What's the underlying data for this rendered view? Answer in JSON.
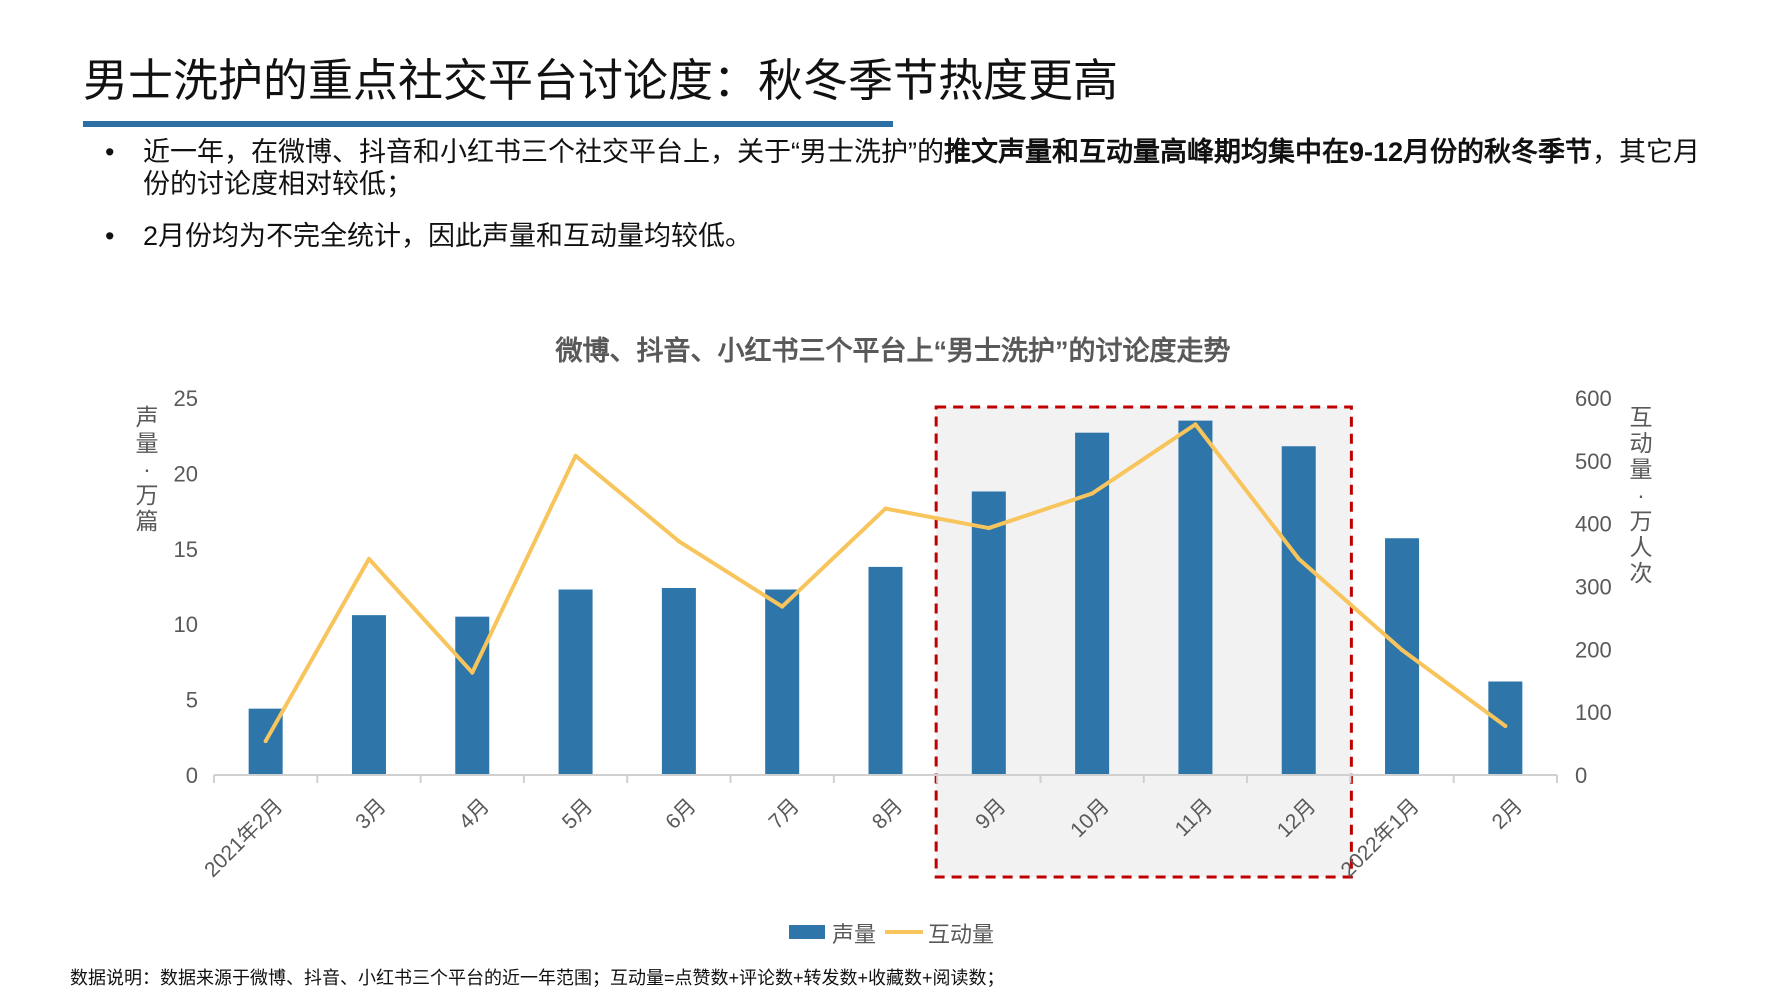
{
  "header": {
    "title": "男士洗护的重点社交平台讨论度：秋冬季节热度更高",
    "accent_color": "#2e6fa3"
  },
  "bullets": [
    {
      "pre": "近一年，在微博、抖音和小红书三个社交平台上，关于“男士洗护”的",
      "bold": "推文声量和互动量高峰期均集中在9-12月份的秋冬季节",
      "post": "，其它月份的讨论度相对较低；"
    },
    {
      "pre": "2月份均为不完全统计，因此声量和互动量均较低。",
      "bold": "",
      "post": ""
    }
  ],
  "bullet_symbol": "•",
  "chart_data": {
    "type": "bar+line",
    "title": "微博、抖音、小红书三个平台上“男士洗护”的讨论度走势",
    "categories": [
      "2021年2月",
      "3月",
      "4月",
      "5月",
      "6月",
      "7月",
      "8月",
      "9月",
      "10月",
      "11月",
      "12月",
      "2022年1月",
      "2月"
    ],
    "series": [
      {
        "name": "声量",
        "type": "bar",
        "axis": "left",
        "color": "#2e75aa",
        "values": [
          4.4,
          10.6,
          10.5,
          12.3,
          12.4,
          12.3,
          13.8,
          18.8,
          22.7,
          23.5,
          21.8,
          15.7,
          6.2
        ]
      },
      {
        "name": "互动量",
        "type": "line",
        "axis": "right",
        "color": "#f8c45c",
        "values": [
          54,
          344,
          163,
          508,
          372,
          268,
          424,
          393,
          448,
          558,
          344,
          199,
          78
        ]
      }
    ],
    "ylabel_left": "声量：万篇",
    "ylabel_right": "互动量：万人次",
    "ylim_left": [
      0,
      25
    ],
    "yticks_left": [
      0,
      5,
      10,
      15,
      20,
      25
    ],
    "ylim_right": [
      0,
      600
    ],
    "yticks_right": [
      0,
      100,
      200,
      300,
      400,
      500,
      600
    ],
    "grid": false,
    "legend": "bottom",
    "highlight": {
      "from": "9月",
      "to": "12月",
      "border_color": "#c00000",
      "fill": "#f2f2f2"
    }
  },
  "footnote": "数据说明：数据来源于微博、抖音、小红书三个平台的近一年范围；互动量=点赞数+评论数+转发数+收藏数+阅读数；"
}
